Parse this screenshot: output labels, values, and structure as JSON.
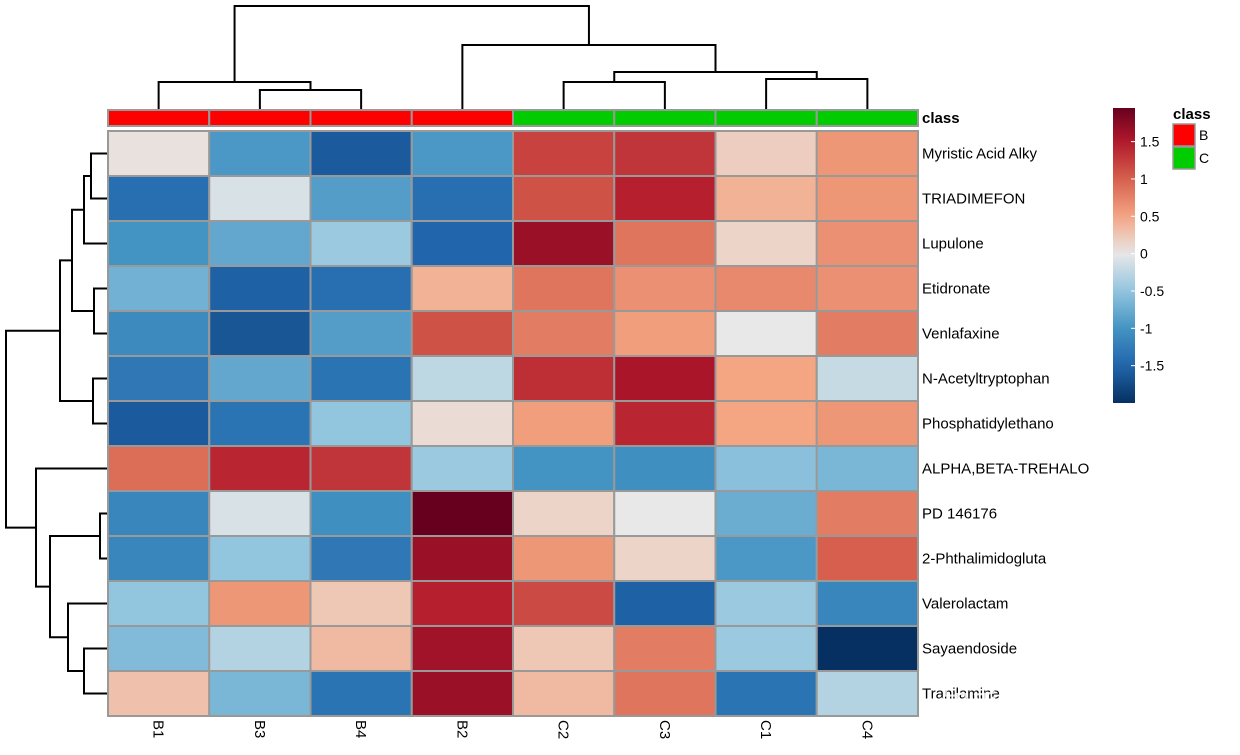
{
  "chart_data": {
    "type": "heatmap",
    "columns": [
      "B1",
      "B3",
      "B4",
      "B2",
      "C2",
      "C3",
      "C1",
      "C4"
    ],
    "rows": [
      "Myristic Acid Alky",
      "TRIADIMEFON",
      "Lupulone",
      "Etidronate",
      "Venlafaxine",
      "N-Acetyltryptophan",
      "Phosphatidylethano",
      "ALPHA,BETA-TREHALO",
      "PD 146176",
      "2-Phthalimidogluta",
      "Valerolactam",
      "Sayaendoside",
      "Tranilamine"
    ],
    "values": [
      [
        0.05,
        -0.95,
        -1.6,
        -0.95,
        1.2,
        1.3,
        0.2,
        0.6
      ],
      [
        -1.4,
        -0.1,
        -0.9,
        -1.4,
        1.1,
        1.45,
        0.4,
        0.6
      ],
      [
        -1.0,
        -0.8,
        -0.45,
        -1.5,
        1.65,
        0.85,
        0.15,
        0.65
      ],
      [
        -0.7,
        -1.55,
        -1.4,
        0.4,
        0.85,
        0.65,
        0.7,
        0.65
      ],
      [
        -1.1,
        -1.65,
        -0.9,
        1.1,
        0.8,
        0.55,
        0.0,
        0.8
      ],
      [
        -1.3,
        -0.8,
        -1.35,
        -0.25,
        1.35,
        1.55,
        0.5,
        -0.2
      ],
      [
        -1.6,
        -1.35,
        -0.5,
        0.1,
        0.55,
        1.4,
        0.5,
        0.6
      ],
      [
        0.9,
        1.4,
        1.3,
        -0.45,
        -1.0,
        -1.05,
        -0.55,
        -0.65
      ],
      [
        -1.15,
        -0.1,
        -1.05,
        1.95,
        0.15,
        0.0,
        -0.75,
        0.8
      ],
      [
        -1.15,
        -0.5,
        -1.3,
        1.65,
        0.6,
        0.15,
        -0.95,
        1.0
      ],
      [
        -0.5,
        0.6,
        0.25,
        1.45,
        1.15,
        -1.55,
        -0.45,
        -1.15
      ],
      [
        -0.6,
        -0.3,
        0.35,
        1.6,
        0.25,
        0.8,
        -0.45,
        -2.0
      ],
      [
        0.3,
        -0.65,
        -1.35,
        1.65,
        0.35,
        0.85,
        -1.35,
        -0.3
      ]
    ],
    "class_annotation": {
      "title": "class",
      "values": [
        "B",
        "B",
        "B",
        "B",
        "C",
        "C",
        "C",
        "C"
      ],
      "levels": [
        "B",
        "C"
      ],
      "colors": {
        "B": "#FF0000",
        "C": "#00CC00"
      }
    },
    "colorbar": {
      "ticks": [
        1.5,
        1,
        0.5,
        0,
        -0.5,
        -1,
        -1.5
      ],
      "tick_labels": [
        "1.5",
        "1",
        "0.5",
        "0",
        "-0.5",
        "-1",
        "-1.5"
      ],
      "range": [
        -2.0,
        1.95
      ],
      "low_color": "#053061",
      "mid_color": "#F7F7F7",
      "high_color": "#67001F"
    },
    "cell_border_color": "#999999",
    "column_dendrogram": "((B1,(B3,B4)),(B2,((C2,C3),(C1,C4))))",
    "row_dendrogram": "(((((Myristic Acid Alky,TRIADIMEFON),Lupulone),(Etidronate,Venlafaxine)),(N-Acetyltryptophan,Phosphatidylethano)),(ALPHA,BETA-TREHALO,((PD 146176,2-Phthalimidogluta),(Valerolactam,(Sayaendoside,Tranilamine)))))"
  },
  "watermark": "知乎 @如期生物"
}
